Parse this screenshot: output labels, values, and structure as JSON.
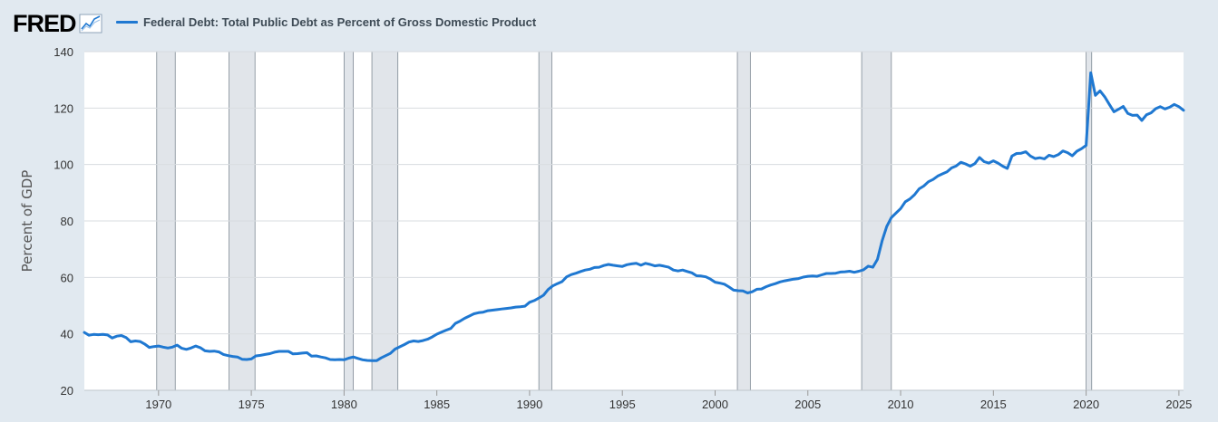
{
  "logo": {
    "text": "FRED"
  },
  "chart_data": {
    "type": "line",
    "title": "Federal Debt: Total Public Debt as Percent of Gross Domestic Product",
    "xlabel": "",
    "ylabel": "Percent of GDP",
    "xlim": [
      1966.0,
      2025.25
    ],
    "ylim": [
      20,
      140
    ],
    "yticks": [
      20,
      40,
      60,
      80,
      100,
      120,
      140
    ],
    "xticks": [
      1970,
      1975,
      1980,
      1985,
      1990,
      1995,
      2000,
      2005,
      2010,
      2015,
      2020,
      2025
    ],
    "grid": true,
    "legend": "top-left",
    "series_color": "#1f78d1",
    "recessions": [
      [
        1969.9,
        1970.9
      ],
      [
        1973.8,
        1975.2
      ],
      [
        1980.0,
        1980.5
      ],
      [
        1981.5,
        1982.9
      ],
      [
        1990.5,
        1991.2
      ],
      [
        2001.2,
        2001.9
      ],
      [
        2007.9,
        2009.5
      ],
      [
        2020.0,
        2020.3
      ]
    ],
    "series": [
      {
        "name": "Federal Debt: Total Public Debt as Percent of Gross Domestic Product",
        "x": [
          1966.0,
          1966.25,
          1966.5,
          1966.75,
          1967.0,
          1967.25,
          1967.5,
          1967.75,
          1968.0,
          1968.25,
          1968.5,
          1968.75,
          1969.0,
          1969.25,
          1969.5,
          1969.75,
          1970.0,
          1970.25,
          1970.5,
          1970.75,
          1971.0,
          1971.25,
          1971.5,
          1971.75,
          1972.0,
          1972.25,
          1972.5,
          1972.75,
          1973.0,
          1973.25,
          1973.5,
          1973.75,
          1974.0,
          1974.25,
          1974.5,
          1974.75,
          1975.0,
          1975.25,
          1975.5,
          1975.75,
          1976.0,
          1976.25,
          1976.5,
          1976.75,
          1977.0,
          1977.25,
          1977.5,
          1977.75,
          1978.0,
          1978.25,
          1978.5,
          1978.75,
          1979.0,
          1979.25,
          1979.5,
          1979.75,
          1980.0,
          1980.25,
          1980.5,
          1980.75,
          1981.0,
          1981.25,
          1981.5,
          1981.75,
          1982.0,
          1982.25,
          1982.5,
          1982.75,
          1983.0,
          1983.25,
          1983.5,
          1983.75,
          1984.0,
          1984.25,
          1984.5,
          1984.75,
          1985.0,
          1985.25,
          1985.5,
          1985.75,
          1986.0,
          1986.25,
          1986.5,
          1986.75,
          1987.0,
          1987.25,
          1987.5,
          1987.75,
          1988.0,
          1988.25,
          1988.5,
          1988.75,
          1989.0,
          1989.25,
          1989.5,
          1989.75,
          1990.0,
          1990.25,
          1990.5,
          1990.75,
          1991.0,
          1991.25,
          1991.5,
          1991.75,
          1992.0,
          1992.25,
          1992.5,
          1992.75,
          1993.0,
          1993.25,
          1993.5,
          1993.75,
          1994.0,
          1994.25,
          1994.5,
          1994.75,
          1995.0,
          1995.25,
          1995.5,
          1995.75,
          1996.0,
          1996.25,
          1996.5,
          1996.75,
          1997.0,
          1997.25,
          1997.5,
          1997.75,
          1998.0,
          1998.25,
          1998.5,
          1998.75,
          1999.0,
          1999.25,
          1999.5,
          1999.75,
          2000.0,
          2000.25,
          2000.5,
          2000.75,
          2001.0,
          2001.25,
          2001.5,
          2001.75,
          2002.0,
          2002.25,
          2002.5,
          2002.75,
          2003.0,
          2003.25,
          2003.5,
          2003.75,
          2004.0,
          2004.25,
          2004.5,
          2004.75,
          2005.0,
          2005.25,
          2005.5,
          2005.75,
          2006.0,
          2006.25,
          2006.5,
          2006.75,
          2007.0,
          2007.25,
          2007.5,
          2007.75,
          2008.0,
          2008.25,
          2008.5,
          2008.75,
          2009.0,
          2009.25,
          2009.5,
          2009.75,
          2010.0,
          2010.25,
          2010.5,
          2010.75,
          2011.0,
          2011.25,
          2011.5,
          2011.75,
          2012.0,
          2012.25,
          2012.5,
          2012.75,
          2013.0,
          2013.25,
          2013.5,
          2013.75,
          2014.0,
          2014.25,
          2014.5,
          2014.75,
          2015.0,
          2015.25,
          2015.5,
          2015.75,
          2016.0,
          2016.25,
          2016.5,
          2016.75,
          2017.0,
          2017.25,
          2017.5,
          2017.75,
          2018.0,
          2018.25,
          2018.5,
          2018.75,
          2019.0,
          2019.25,
          2019.5,
          2019.75,
          2020.0,
          2020.25,
          2020.5,
          2020.75,
          2021.0,
          2021.25,
          2021.5,
          2021.75,
          2022.0,
          2022.25,
          2022.5,
          2022.75,
          2023.0,
          2023.25,
          2023.5,
          2023.75,
          2024.0,
          2024.25,
          2024.5,
          2024.75,
          2025.0,
          2025.25
        ],
        "values": [
          40.5,
          39.5,
          39.8,
          39.7,
          39.8,
          39.6,
          38.5,
          39.2,
          39.4,
          38.7,
          37.2,
          37.5,
          37.3,
          36.4,
          35.2,
          35.5,
          35.7,
          35.3,
          35.0,
          35.3,
          36.0,
          34.9,
          34.5,
          35.0,
          35.7,
          35.1,
          34.0,
          33.8,
          33.9,
          33.6,
          32.7,
          32.3,
          32.0,
          31.8,
          31.0,
          30.9,
          31.1,
          32.2,
          32.4,
          32.7,
          33.0,
          33.5,
          33.8,
          33.8,
          33.8,
          32.9,
          33.0,
          33.2,
          33.3,
          32.1,
          32.2,
          31.8,
          31.5,
          30.9,
          30.8,
          30.9,
          30.8,
          31.4,
          31.8,
          31.3,
          30.8,
          30.6,
          30.5,
          30.5,
          31.5,
          32.3,
          33.1,
          34.6,
          35.4,
          36.2,
          37.1,
          37.5,
          37.3,
          37.6,
          38.1,
          38.9,
          39.9,
          40.6,
          41.3,
          41.9,
          43.7,
          44.5,
          45.5,
          46.3,
          47.1,
          47.5,
          47.7,
          48.2,
          48.4,
          48.6,
          48.8,
          49.0,
          49.2,
          49.5,
          49.6,
          49.8,
          51.2,
          51.8,
          52.7,
          53.7,
          55.7,
          57.0,
          57.8,
          58.5,
          60.2,
          61.0,
          61.5,
          62.1,
          62.6,
          62.9,
          63.5,
          63.6,
          64.2,
          64.6,
          64.3,
          64.1,
          63.9,
          64.5,
          64.8,
          65.0,
          64.3,
          65.0,
          64.6,
          64.1,
          64.3,
          64.0,
          63.6,
          62.6,
          62.3,
          62.6,
          62.1,
          61.6,
          60.6,
          60.5,
          60.2,
          59.4,
          58.3,
          58.0,
          57.6,
          56.6,
          55.5,
          55.3,
          55.2,
          54.5,
          54.9,
          55.8,
          55.9,
          56.7,
          57.3,
          57.8,
          58.4,
          58.8,
          59.1,
          59.4,
          59.6,
          60.1,
          60.4,
          60.5,
          60.4,
          60.9,
          61.4,
          61.4,
          61.5,
          61.9,
          62.0,
          62.2,
          61.8,
          62.2,
          62.7,
          64.0,
          63.6,
          66.4,
          72.9,
          78.0,
          81.2,
          82.8,
          84.4,
          86.8,
          87.8,
          89.3,
          91.4,
          92.4,
          93.9,
          94.7,
          95.9,
          96.7,
          97.4,
          98.8,
          99.5,
          100.8,
          100.2,
          99.4,
          100.3,
          102.5,
          101.0,
          100.5,
          101.3,
          100.5,
          99.4,
          98.6,
          103.0,
          103.9,
          104.0,
          104.5,
          103.0,
          102.1,
          102.4,
          102.0,
          103.3,
          102.8,
          103.5,
          104.8,
          104.2,
          103.1,
          104.7,
          105.6,
          106.8,
          132.5,
          124.5,
          126.1,
          124.0,
          121.3,
          118.7,
          119.6,
          120.6,
          118.1,
          117.4,
          117.5,
          115.6,
          117.6,
          118.3,
          119.8,
          120.5,
          119.7,
          120.3,
          121.3,
          120.5,
          119.2
        ]
      }
    ]
  }
}
